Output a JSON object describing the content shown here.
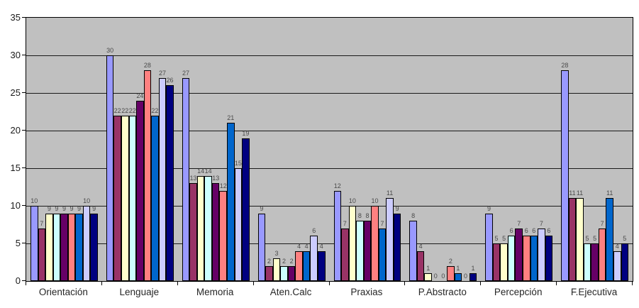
{
  "chart_data": {
    "type": "bar",
    "categories": [
      "Orientación",
      "Lenguaje",
      "Memoria",
      "Aten.Calc",
      "Praxias",
      "P.Abstracto",
      "Percepción",
      "F.Ejecutiva"
    ],
    "series": [
      {
        "color": "#9999FF",
        "values": [
          10,
          30,
          27,
          9,
          12,
          8,
          9,
          28
        ]
      },
      {
        "color": "#993366",
        "values": [
          7,
          22,
          13,
          2,
          7,
          4,
          5,
          11
        ]
      },
      {
        "color": "#FFFFCC",
        "values": [
          9,
          22,
          14,
          3,
          10,
          1,
          5,
          11
        ]
      },
      {
        "color": "#CCFFFF",
        "values": [
          9,
          22,
          14,
          2,
          8,
          0,
          6,
          5
        ]
      },
      {
        "color": "#660066",
        "values": [
          9,
          24,
          13,
          2,
          8,
          0,
          7,
          5
        ]
      },
      {
        "color": "#FF8080",
        "values": [
          9,
          28,
          12,
          4,
          10,
          2,
          6,
          7
        ]
      },
      {
        "color": "#0066CC",
        "values": [
          9,
          22,
          21,
          4,
          7,
          1,
          6,
          11
        ]
      },
      {
        "color": "#CCCCFF",
        "values": [
          10,
          27,
          15,
          6,
          11,
          0,
          7,
          4
        ]
      },
      {
        "color": "#000080",
        "values": [
          9,
          26,
          19,
          4,
          9,
          1,
          6,
          5
        ]
      }
    ],
    "xlabel": "",
    "ylabel": "",
    "ylim": [
      0,
      35
    ],
    "yticks": [
      0,
      5,
      10,
      15,
      20,
      25,
      30,
      35
    ],
    "grid": true,
    "legend": "none",
    "value_labels_shown": true,
    "plot_background_color": "#C0C0C0",
    "bar_border_color": "#000000"
  }
}
